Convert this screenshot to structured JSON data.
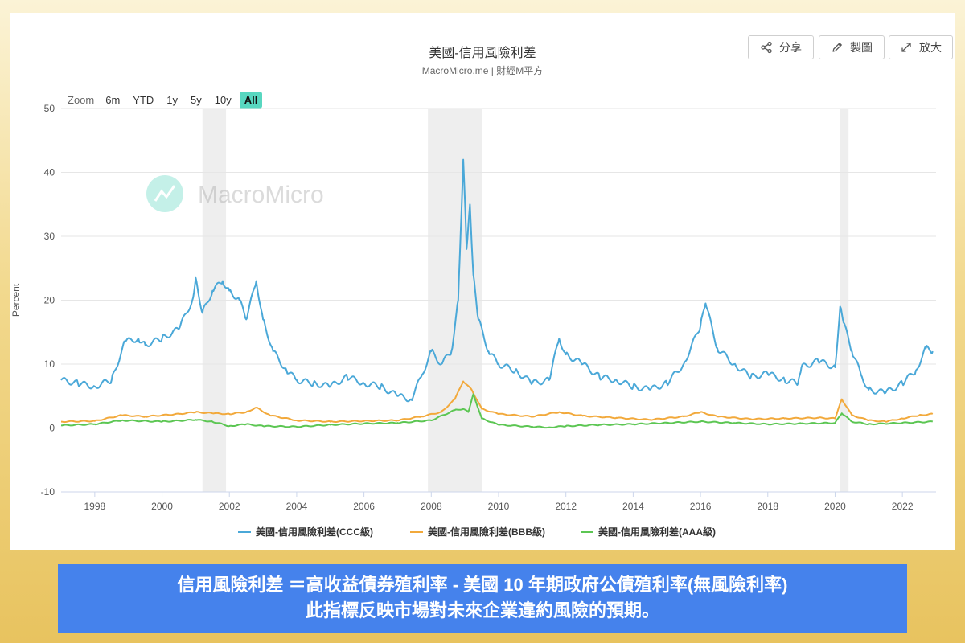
{
  "header": {
    "title": "美國-信用風險利差",
    "subtitle": "MacroMicro.me | 財經M平方"
  },
  "toolbar": {
    "share_label": "分享",
    "draw_label": "製圖",
    "expand_label": "放大"
  },
  "zoom": {
    "label": "Zoom",
    "options": [
      "6m",
      "YTD",
      "1y",
      "5y",
      "10y",
      "All"
    ],
    "active": "All"
  },
  "watermark": {
    "text": "MacroMicro"
  },
  "caption": {
    "line1": "信用風險利差 ＝高收益債券殖利率 - 美國 10 年期政府公債殖利率(無風險利率)",
    "line2": "此指標反映市場對未來企業違約風險的預期。"
  },
  "colors": {
    "ccc": "#4aa8d8",
    "bbb": "#f2a93b",
    "aaa": "#5cc653",
    "recession": "#eeeeee",
    "accent": "#58d7c0",
    "caption_bg": "#4582ec"
  },
  "chart_data": {
    "type": "line",
    "title": "美國-信用風險利差",
    "subtitle": "MacroMicro.me | 財經M平方",
    "xlabel": "",
    "ylabel": "Percent",
    "xlim": [
      1997.0,
      2023.0
    ],
    "ylim": [
      -10,
      50
    ],
    "x_ticks": [
      1998,
      2000,
      2002,
      2004,
      2006,
      2008,
      2010,
      2012,
      2014,
      2016,
      2018,
      2020,
      2022
    ],
    "y_ticks": [
      -10,
      0,
      10,
      20,
      30,
      40,
      50
    ],
    "grid": true,
    "legend_position": "bottom",
    "recession_bands": [
      [
        2001.2,
        2001.9
      ],
      [
        2007.9,
        2009.5
      ],
      [
        2020.15,
        2020.4
      ]
    ],
    "series": [
      {
        "name": "美國-信用風險利差(CCC級)",
        "color": "#4aa8d8",
        "x": [
          1997.0,
          1997.5,
          1998.0,
          1998.5,
          1998.9,
          1999.3,
          1999.5,
          2000.0,
          2000.5,
          2000.9,
          2001.0,
          2001.2,
          2001.5,
          2001.8,
          2002.0,
          2002.3,
          2002.5,
          2002.8,
          2003.0,
          2003.3,
          2003.7,
          2004.0,
          2004.5,
          2005.0,
          2005.5,
          2006.0,
          2006.5,
          2007.0,
          2007.4,
          2007.7,
          2008.0,
          2008.3,
          2008.6,
          2008.8,
          2008.95,
          2009.05,
          2009.15,
          2009.25,
          2009.4,
          2009.7,
          2010.0,
          2010.5,
          2011.0,
          2011.5,
          2011.8,
          2012.0,
          2012.5,
          2013.0,
          2013.5,
          2014.0,
          2014.5,
          2015.0,
          2015.5,
          2016.0,
          2016.15,
          2016.5,
          2017.0,
          2017.5,
          2018.0,
          2018.5,
          2018.9,
          2019.0,
          2019.5,
          2020.0,
          2020.15,
          2020.25,
          2020.5,
          2020.8,
          2021.0,
          2021.5,
          2022.0,
          2022.4,
          2022.7,
          2022.9
        ],
        "values": [
          7.5,
          7.0,
          6.5,
          7.5,
          13.5,
          14.0,
          13.0,
          14.0,
          15.5,
          20.0,
          23.5,
          18.0,
          21.5,
          23.0,
          21.5,
          20.0,
          17.0,
          23.0,
          17.0,
          12.0,
          9.0,
          7.5,
          7.0,
          6.5,
          8.0,
          7.0,
          6.5,
          5.0,
          4.5,
          8.0,
          12.0,
          10.0,
          12.0,
          20.0,
          42.0,
          28.0,
          35.0,
          24.0,
          17.0,
          12.0,
          10.0,
          9.0,
          7.0,
          7.5,
          14.0,
          11.5,
          10.0,
          8.0,
          7.5,
          6.5,
          6.0,
          7.0,
          10.0,
          16.0,
          19.5,
          12.5,
          10.0,
          8.0,
          8.5,
          7.5,
          7.0,
          9.5,
          10.5,
          9.5,
          19.0,
          16.5,
          12.0,
          8.0,
          6.0,
          5.5,
          7.0,
          9.0,
          12.5,
          12.0
        ]
      },
      {
        "name": "美國-信用風險利差(BBB級)",
        "color": "#f2a93b",
        "x": [
          1997.0,
          1998.0,
          1998.8,
          1999.5,
          2000.5,
          2001.0,
          2001.5,
          2002.0,
          2002.5,
          2002.8,
          2003.2,
          2004.0,
          2005.0,
          2006.0,
          2007.0,
          2007.7,
          2008.3,
          2008.7,
          2008.95,
          2009.2,
          2009.5,
          2010.0,
          2011.0,
          2011.8,
          2012.5,
          2013.5,
          2014.5,
          2015.5,
          2016.0,
          2016.5,
          2017.5,
          2018.5,
          2019.5,
          2020.0,
          2020.2,
          2020.5,
          2021.0,
          2021.5,
          2022.0,
          2022.5,
          2022.9
        ],
        "values": [
          1.0,
          1.1,
          2.0,
          1.8,
          2.2,
          2.5,
          2.3,
          2.2,
          2.5,
          3.2,
          2.0,
          1.2,
          1.0,
          1.1,
          1.2,
          1.8,
          2.5,
          4.5,
          7.3,
          6.0,
          3.0,
          2.2,
          1.8,
          2.5,
          1.9,
          1.6,
          1.3,
          1.8,
          2.5,
          1.8,
          1.4,
          1.5,
          1.6,
          1.5,
          4.5,
          2.0,
          1.2,
          1.0,
          1.5,
          2.0,
          2.2
        ]
      },
      {
        "name": "美國-信用風險利差(AAA級)",
        "color": "#5cc653",
        "x": [
          1997.0,
          1998.0,
          1998.8,
          2000.0,
          2001.0,
          2001.5,
          2002.0,
          2002.5,
          2003.0,
          2004.0,
          2005.0,
          2006.0,
          2007.0,
          2008.0,
          2008.7,
          2008.95,
          2009.1,
          2009.25,
          2009.5,
          2010.0,
          2011.0,
          2011.5,
          2012.0,
          2013.0,
          2014.0,
          2015.0,
          2016.0,
          2017.0,
          2018.0,
          2019.0,
          2020.0,
          2020.2,
          2020.5,
          2021.0,
          2022.0,
          2022.9
        ],
        "values": [
          0.4,
          0.6,
          1.2,
          1.0,
          1.3,
          1.0,
          0.3,
          0.6,
          0.3,
          0.2,
          0.5,
          0.7,
          0.8,
          1.2,
          2.8,
          3.0,
          2.5,
          5.3,
          1.5,
          0.5,
          0.2,
          0.1,
          0.3,
          0.5,
          0.6,
          0.8,
          1.0,
          0.8,
          0.6,
          0.7,
          0.8,
          2.3,
          1.0,
          0.6,
          0.8,
          1.0
        ]
      }
    ]
  }
}
